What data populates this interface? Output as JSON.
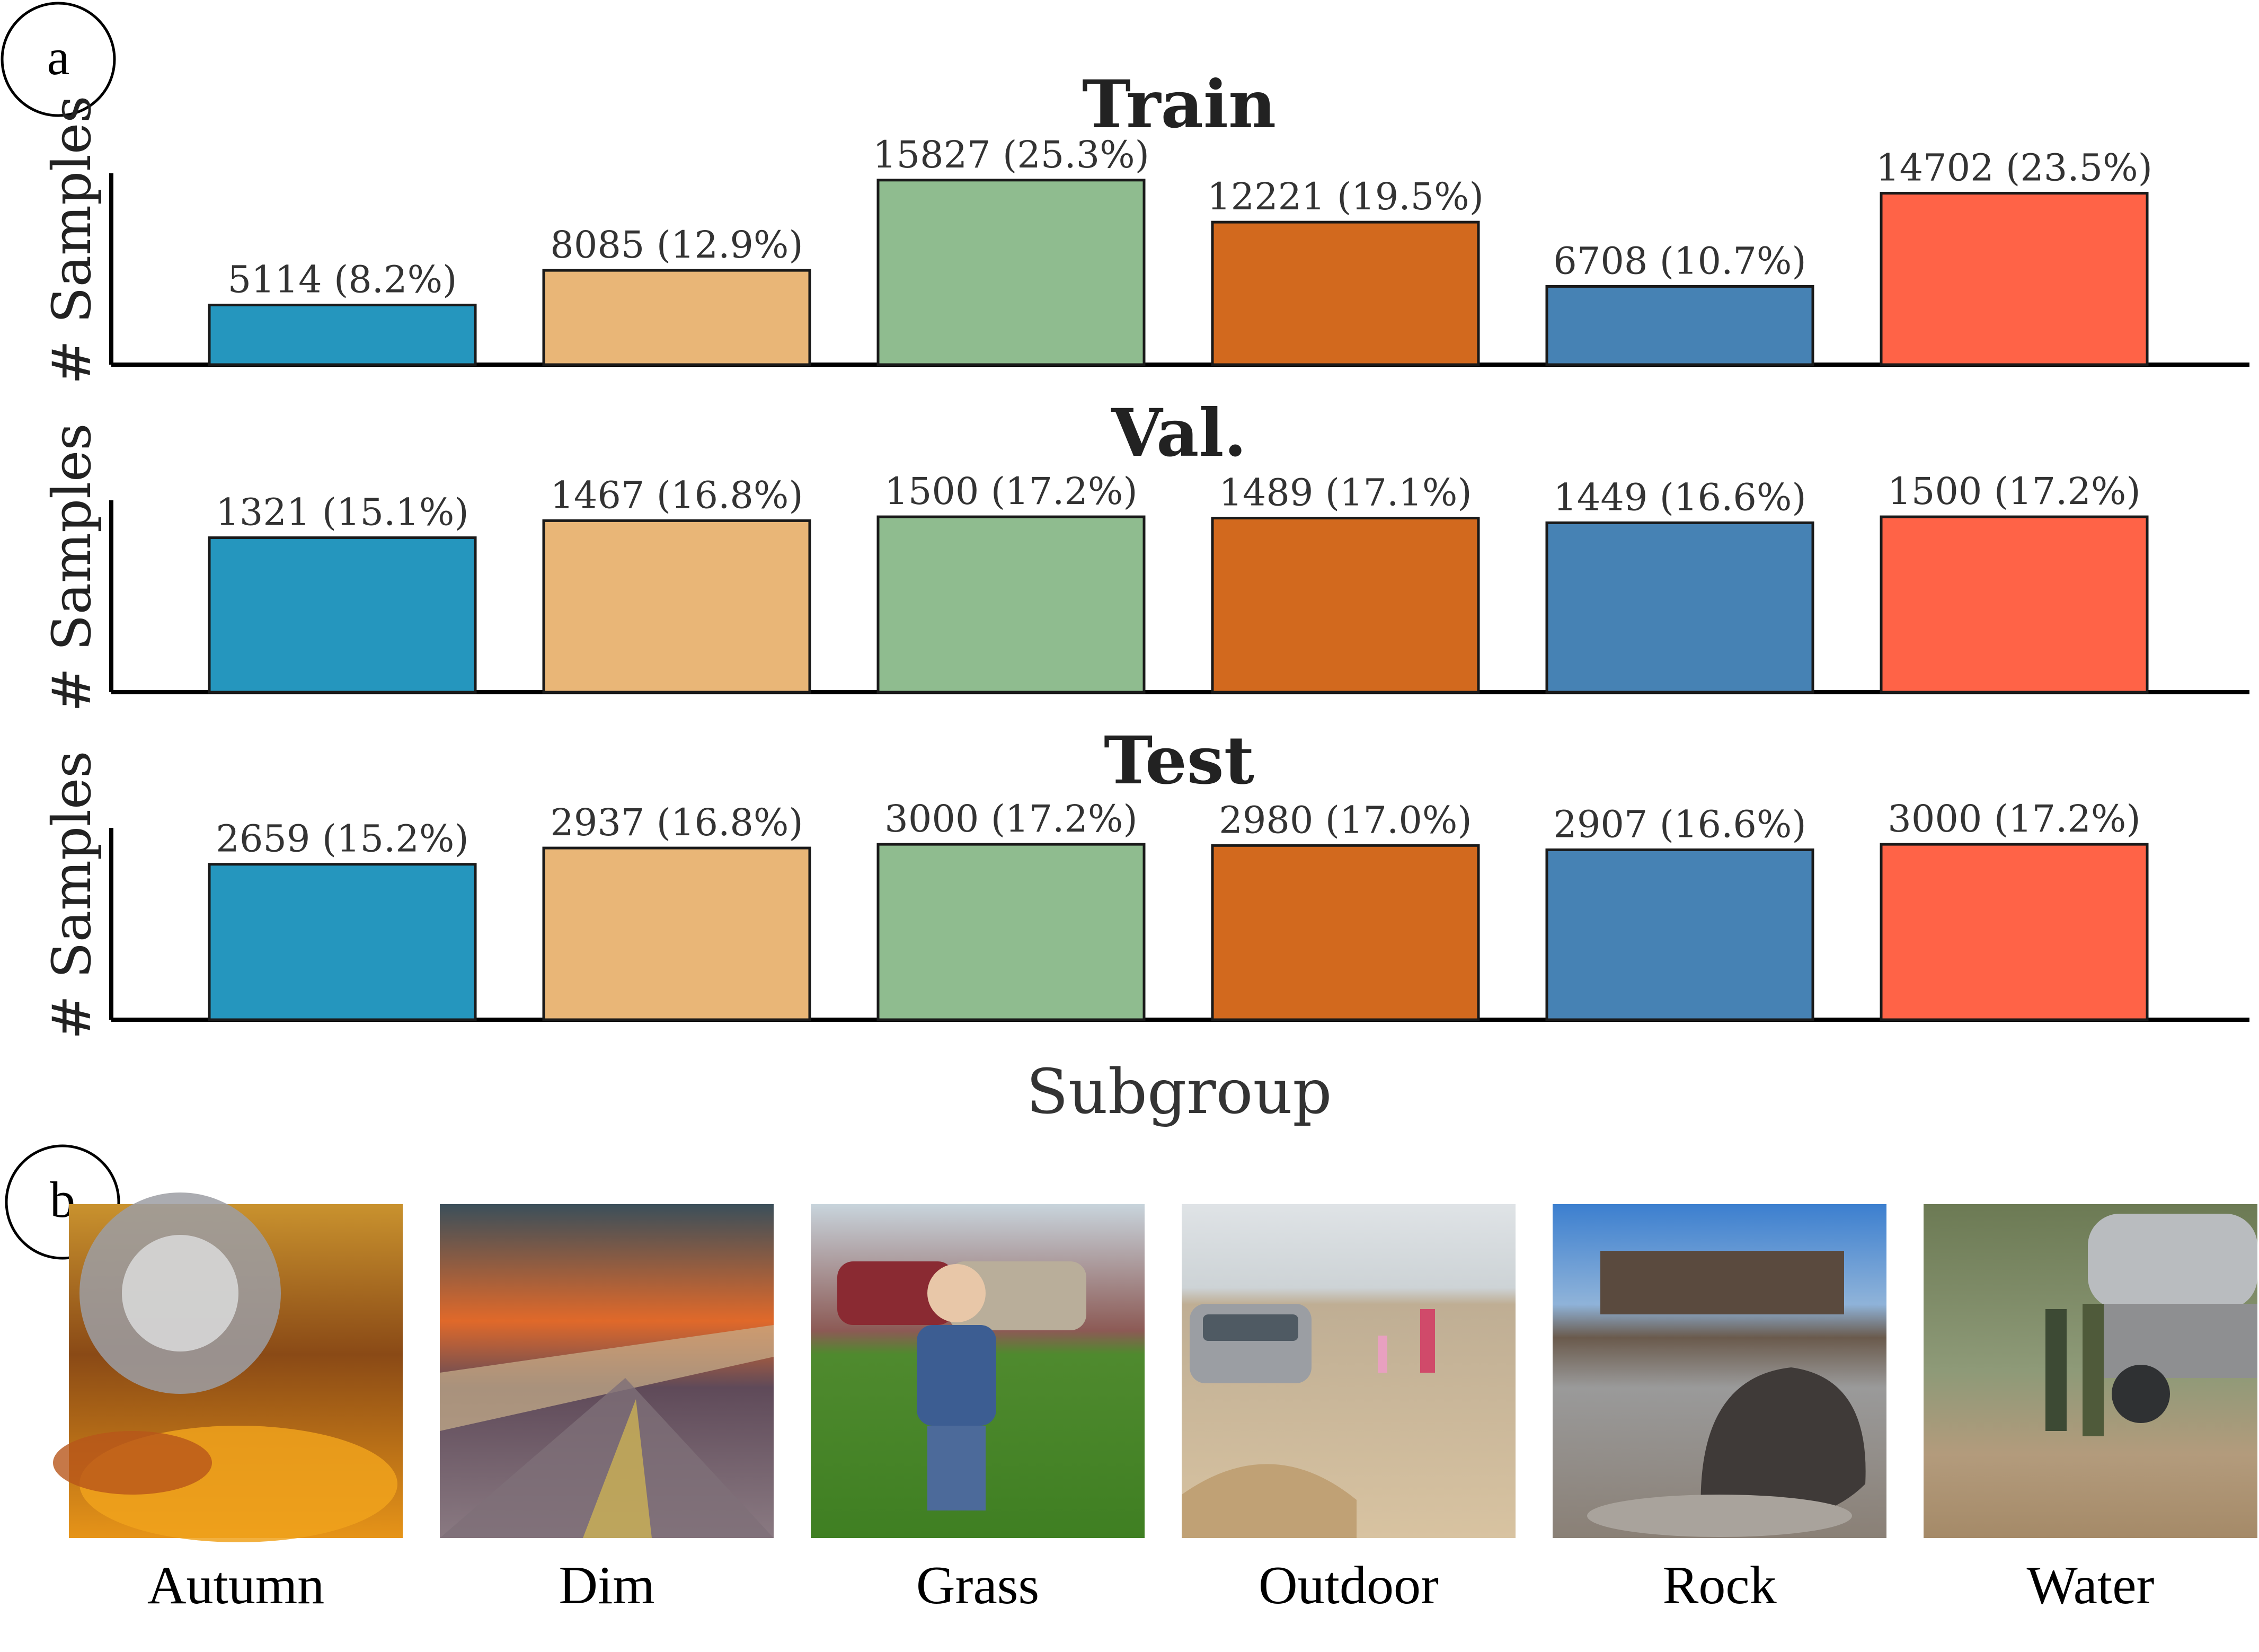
{
  "panel_labels": {
    "a": "a",
    "b": "b"
  },
  "chart_data": [
    {
      "type": "bar",
      "title": "Train",
      "ylabel": "# Samples",
      "xlabel": "",
      "categories": [
        "Autumn",
        "Dim",
        "Grass",
        "Outdoor",
        "Rock",
        "Water"
      ],
      "values": [
        5114,
        8085,
        15827,
        12221,
        6708,
        14702
      ],
      "data_labels": [
        "5114 (8.2%)",
        "8085 (12.9%)",
        "15827 (25.3%)",
        "12221 (19.5%)",
        "6708 (10.7%)",
        "14702 (23.5%)"
      ],
      "ylim": [
        0,
        16500
      ],
      "colors": [
        "#2596be",
        "#e9b677",
        "#8fbc8f",
        "#d2691e",
        "#4682b4",
        "#ff6347"
      ],
      "grid": false
    },
    {
      "type": "bar",
      "title": "Val.",
      "ylabel": "# Samples",
      "xlabel": "",
      "categories": [
        "Autumn",
        "Dim",
        "Grass",
        "Outdoor",
        "Rock",
        "Water"
      ],
      "values": [
        1321,
        1467,
        1500,
        1489,
        1449,
        1500
      ],
      "data_labels": [
        "1321 (15.1%)",
        "1467 (16.8%)",
        "1500 (17.2%)",
        "1489 (17.1%)",
        "1449 (16.6%)",
        "1500 (17.2%)"
      ],
      "ylim": [
        0,
        1650
      ],
      "colors": [
        "#2596be",
        "#e9b677",
        "#8fbc8f",
        "#d2691e",
        "#4682b4",
        "#ff6347"
      ],
      "grid": false
    },
    {
      "type": "bar",
      "title": "Test",
      "ylabel": "# Samples",
      "xlabel": "Subgroup",
      "categories": [
        "Autumn",
        "Dim",
        "Grass",
        "Outdoor",
        "Rock",
        "Water"
      ],
      "values": [
        2659,
        2937,
        3000,
        2980,
        2907,
        3000
      ],
      "data_labels": [
        "2659 (15.2%)",
        "2937 (16.8%)",
        "3000 (17.2%)",
        "2980 (17.0%)",
        "2907 (16.6%)",
        "3000 (17.2%)"
      ],
      "ylim": [
        0,
        3300
      ],
      "colors": [
        "#2596be",
        "#e9b677",
        "#8fbc8f",
        "#d2691e",
        "#4682b4",
        "#ff6347"
      ],
      "grid": false
    }
  ],
  "gallery": {
    "captions": [
      "Autumn",
      "Dim",
      "Grass",
      "Outdoor",
      "Rock",
      "Water"
    ]
  }
}
